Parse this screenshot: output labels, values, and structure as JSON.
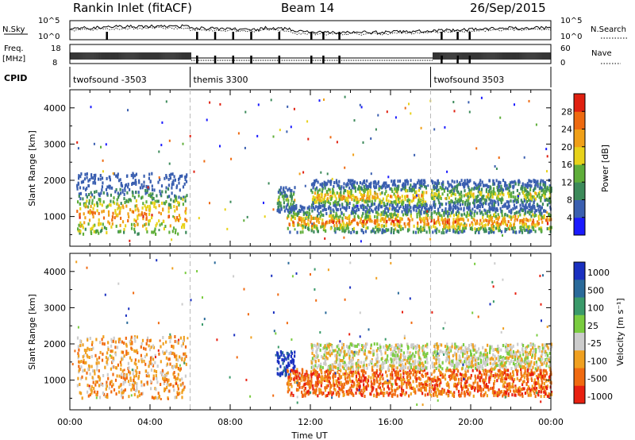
{
  "header": {
    "station": "Rankin Inlet (fitACF)",
    "beam": "Beam 14",
    "date": "26/Sep/2015"
  },
  "top_panel": {
    "left_labels": {
      "nsky": "N.Sky",
      "freq_line1": "Freq.",
      "freq_line2": "[MHz]",
      "cpid": "CPID"
    },
    "right_labels": {
      "nsearch": "N.Search",
      "nave": "Nave"
    },
    "left_ticks_counts": [
      "10^5",
      "10^0"
    ],
    "right_ticks_counts": [
      "10^5",
      "10^0"
    ],
    "freq_ticks": [
      "8",
      "18"
    ],
    "nave_ticks": [
      "60",
      "0"
    ],
    "cpid_segments": [
      {
        "label": "twofsound -3503",
        "start_hour": 0,
        "end_hour": 6
      },
      {
        "label": "themis 3300",
        "start_hour": 6,
        "end_hour": 18
      },
      {
        "label": "twofsound 3503",
        "start_hour": 18,
        "end_hour": 24
      }
    ]
  },
  "chart_data": [
    {
      "type": "heatmap",
      "ylabel": "Slant Range [km]",
      "xlabel": "",
      "xlim": [
        0,
        24
      ],
      "ylim": [
        180,
        4500
      ],
      "yticks": [
        1000,
        2000,
        3000,
        4000
      ],
      "colorbar": {
        "label": "Power [dB]",
        "ticks": [
          4,
          8,
          12,
          16,
          20,
          24,
          28
        ],
        "range": [
          0,
          32
        ],
        "colors": [
          "#1a1aff",
          "#3a5fb0",
          "#3c8a5a",
          "#5fae3a",
          "#e8d21a",
          "#f0a018",
          "#ee6a10",
          "#e02010"
        ]
      },
      "echo_bands": [
        {
          "t0": 0.3,
          "t1": 5.8,
          "r0": 500,
          "r1": 2200,
          "peak_range": 1000,
          "intensity": 0.8
        },
        {
          "t0": 10.3,
          "t1": 11.2,
          "r0": 1100,
          "r1": 1800,
          "peak_range": 1450,
          "intensity": 0.5
        },
        {
          "t0": 10.8,
          "t1": 24.0,
          "r0": 550,
          "r1": 1300,
          "peak_range": 850,
          "intensity": 0.85
        },
        {
          "t0": 12.0,
          "t1": 17.8,
          "r0": 1300,
          "r1": 2000,
          "peak_range": 1550,
          "intensity": 0.75
        },
        {
          "t0": 18.0,
          "t1": 24.0,
          "r0": 1300,
          "r1": 2000,
          "peak_range": 1600,
          "intensity": 0.55
        }
      ]
    },
    {
      "type": "heatmap",
      "ylabel": "Slant Range [km]",
      "xlabel": "Time UT",
      "xlim": [
        0,
        24
      ],
      "ylim": [
        180,
        4500
      ],
      "yticks": [
        1000,
        2000,
        3000,
        4000
      ],
      "xticks": [
        "00:00",
        "04:00",
        "08:00",
        "12:00",
        "16:00",
        "20:00",
        "00:00"
      ],
      "colorbar": {
        "label": "Velocity [m s⁻¹]",
        "ticks": [
          "1000",
          "500",
          "100",
          "25",
          "-25",
          "-100",
          "-500",
          "-1000"
        ],
        "colors": [
          "#1a30c0",
          "#2a6a9a",
          "#3a9a6a",
          "#7acc40",
          "#cccccc",
          "#f0a020",
          "#f06a10",
          "#e82010"
        ]
      },
      "echo_bands": [
        {
          "t0": 0.3,
          "t1": 5.8,
          "r0": 500,
          "r1": 2200,
          "velocity": -100
        },
        {
          "t0": 10.3,
          "t1": 11.2,
          "r0": 1100,
          "r1": 1800,
          "velocity": 1000
        },
        {
          "t0": 10.8,
          "t1": 24.0,
          "r0": 550,
          "r1": 1300,
          "velocity": -300
        },
        {
          "t0": 12.0,
          "t1": 17.8,
          "r0": 1300,
          "r1": 2000,
          "velocity": 0
        },
        {
          "t0": 18.0,
          "t1": 24.0,
          "r0": 1300,
          "r1": 2000,
          "velocity": 0
        }
      ]
    }
  ]
}
